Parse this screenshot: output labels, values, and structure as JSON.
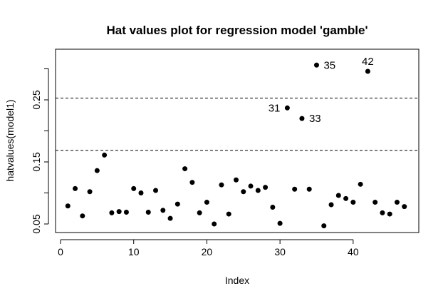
{
  "chart_data": {
    "type": "scatter",
    "title": "Hat values plot for regression model 'gamble'",
    "xlabel": "Index",
    "ylabel": "hatvalues(model1)",
    "xlim": [
      0,
      48
    ],
    "ylim": [
      0.045,
      0.31
    ],
    "x_ticks": [
      0,
      10,
      20,
      30,
      40
    ],
    "y_ticks": [
      0.05,
      0.15,
      0.25
    ],
    "x_tick_labels": [
      "0",
      "10",
      "20",
      "30",
      "40"
    ],
    "y_tick_labels": [
      "0.05",
      "0.15",
      "0.25"
    ],
    "reference_lines": [
      0.1686,
      0.2529
    ],
    "reference_line_style": "dashed",
    "grid": false,
    "points": [
      {
        "x": 1,
        "y": 0.079
      },
      {
        "x": 2,
        "y": 0.107
      },
      {
        "x": 3,
        "y": 0.063
      },
      {
        "x": 4,
        "y": 0.102
      },
      {
        "x": 5,
        "y": 0.136
      },
      {
        "x": 6,
        "y": 0.161
      },
      {
        "x": 7,
        "y": 0.068
      },
      {
        "x": 8,
        "y": 0.07
      },
      {
        "x": 9,
        "y": 0.069
      },
      {
        "x": 10,
        "y": 0.107
      },
      {
        "x": 11,
        "y": 0.1
      },
      {
        "x": 12,
        "y": 0.069
      },
      {
        "x": 13,
        "y": 0.104
      },
      {
        "x": 14,
        "y": 0.072
      },
      {
        "x": 15,
        "y": 0.059
      },
      {
        "x": 16,
        "y": 0.082
      },
      {
        "x": 17,
        "y": 0.139
      },
      {
        "x": 18,
        "y": 0.117
      },
      {
        "x": 19,
        "y": 0.068
      },
      {
        "x": 20,
        "y": 0.085
      },
      {
        "x": 21,
        "y": 0.05
      },
      {
        "x": 22,
        "y": 0.113
      },
      {
        "x": 23,
        "y": 0.066
      },
      {
        "x": 24,
        "y": 0.121
      },
      {
        "x": 25,
        "y": 0.102
      },
      {
        "x": 26,
        "y": 0.111
      },
      {
        "x": 27,
        "y": 0.104
      },
      {
        "x": 28,
        "y": 0.109
      },
      {
        "x": 29,
        "y": 0.077
      },
      {
        "x": 30,
        "y": 0.051
      },
      {
        "x": 31,
        "y": 0.237,
        "label": "31",
        "label_side": "left"
      },
      {
        "x": 32,
        "y": 0.106
      },
      {
        "x": 33,
        "y": 0.22,
        "label": "33",
        "label_side": "right"
      },
      {
        "x": 34,
        "y": 0.106
      },
      {
        "x": 35,
        "y": 0.306,
        "label": "35",
        "label_side": "right"
      },
      {
        "x": 36,
        "y": 0.047
      },
      {
        "x": 37,
        "y": 0.081
      },
      {
        "x": 38,
        "y": 0.096
      },
      {
        "x": 39,
        "y": 0.091
      },
      {
        "x": 40,
        "y": 0.085
      },
      {
        "x": 41,
        "y": 0.114
      },
      {
        "x": 42,
        "y": 0.296,
        "label": "42",
        "label_side": "top"
      },
      {
        "x": 43,
        "y": 0.085
      },
      {
        "x": 44,
        "y": 0.068
      },
      {
        "x": 45,
        "y": 0.066
      },
      {
        "x": 46,
        "y": 0.085
      },
      {
        "x": 47,
        "y": 0.078
      }
    ]
  }
}
